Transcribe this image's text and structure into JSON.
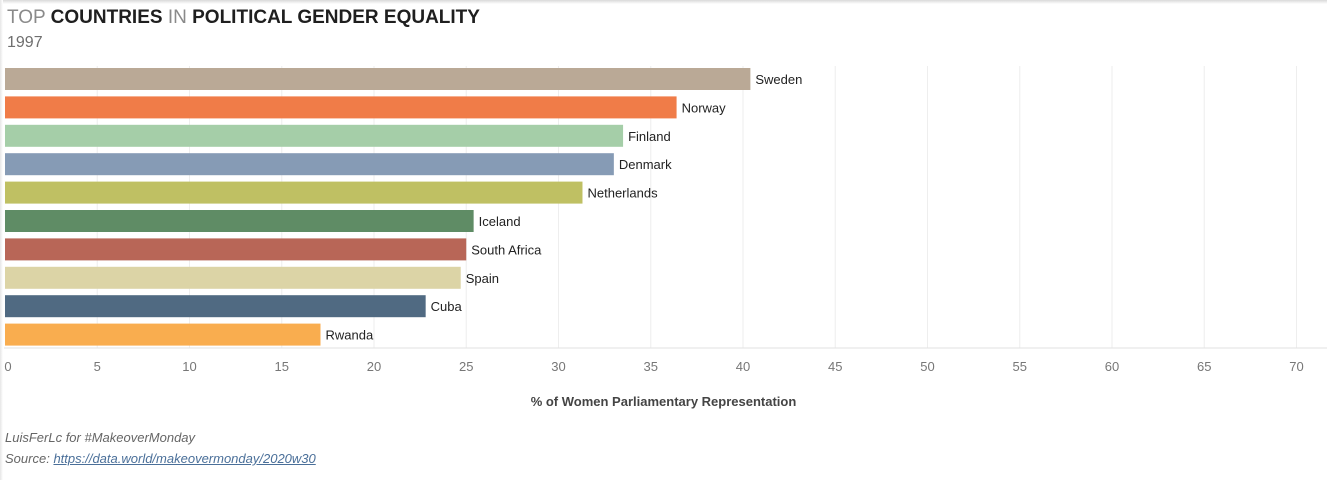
{
  "title": {
    "word1": "TOP",
    "word2": "COUNTRIES",
    "word3": "IN",
    "word4": "POLITICAL GENDER EQUALITY"
  },
  "subtitle": "1997",
  "chart_data": {
    "type": "bar",
    "orientation": "horizontal",
    "categories": [
      "Sweden",
      "Norway",
      "Finland",
      "Denmark",
      "Netherlands",
      "Iceland",
      "South Africa",
      "Spain",
      "Cuba",
      "Rwanda"
    ],
    "values": [
      40.4,
      36.4,
      33.5,
      33.0,
      31.3,
      25.4,
      25.0,
      24.7,
      22.8,
      17.1
    ],
    "colors": [
      "#baa996",
      "#f07c48",
      "#a5cea8",
      "#869bb5",
      "#bfc063",
      "#5f8c65",
      "#b86657",
      "#dcd4a6",
      "#506a82",
      "#f9ad4f"
    ],
    "xlabel": "% of Women Parliamentary Representation",
    "xlim": [
      0,
      70
    ],
    "xticks": [
      "0",
      "5",
      "10",
      "15",
      "20",
      "25",
      "30",
      "35",
      "40",
      "45",
      "50",
      "55",
      "60",
      "65",
      "70"
    ],
    "grid": true,
    "legend": "none"
  },
  "footer": {
    "credit": "LuisFerLc for  #MakeoverMonday",
    "source_label": "Source:",
    "source_link": "https://data.world/makeovermonday/2020w30"
  }
}
